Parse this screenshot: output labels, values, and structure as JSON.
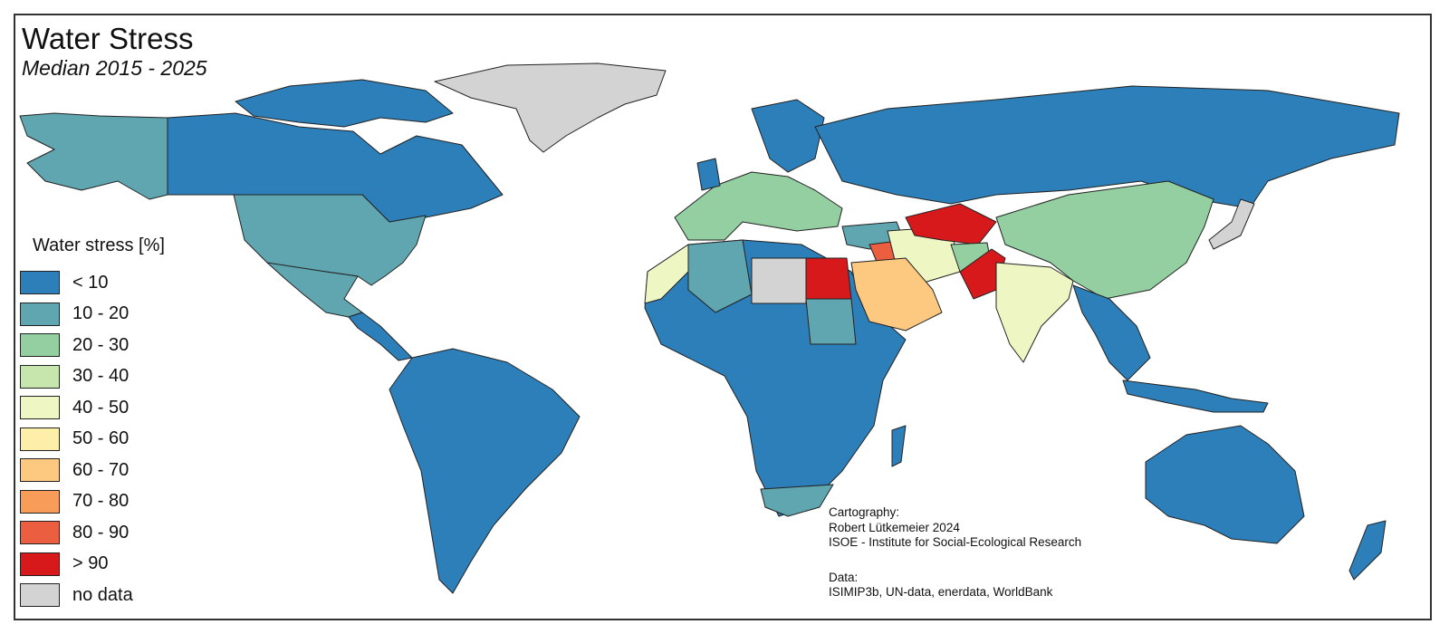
{
  "map": {
    "title": "Water Stress",
    "subtitle": "Median 2015 - 2025"
  },
  "legend": {
    "title": "Water stress [%]",
    "items": [
      {
        "label": "< 10",
        "color": "#2c7fb8"
      },
      {
        "label": "10 - 20",
        "color": "#5fa6b0"
      },
      {
        "label": "20 - 30",
        "color": "#93cfa0"
      },
      {
        "label": "30 - 40",
        "color": "#c6e6ae"
      },
      {
        "label": "40 - 50",
        "color": "#eef7c4"
      },
      {
        "label": "50 - 60",
        "color": "#fdeeaa"
      },
      {
        "label": "60 - 70",
        "color": "#fdc980"
      },
      {
        "label": "70 - 80",
        "color": "#f89c5a"
      },
      {
        "label": "80 - 90",
        "color": "#ec5e40"
      },
      {
        "label": "> 90",
        "color": "#d7191c"
      },
      {
        "label": "no data",
        "color": "#d3d3d3"
      }
    ]
  },
  "credits": {
    "cartography_heading": "Cartography:",
    "author": "Robert Lütkemeier 2024",
    "institute": "ISOE - Institute for Social-Ecological Research",
    "data_heading": "Data:",
    "sources": "ISIMIP3b, UN-data, enerdata, WorldBank"
  }
}
